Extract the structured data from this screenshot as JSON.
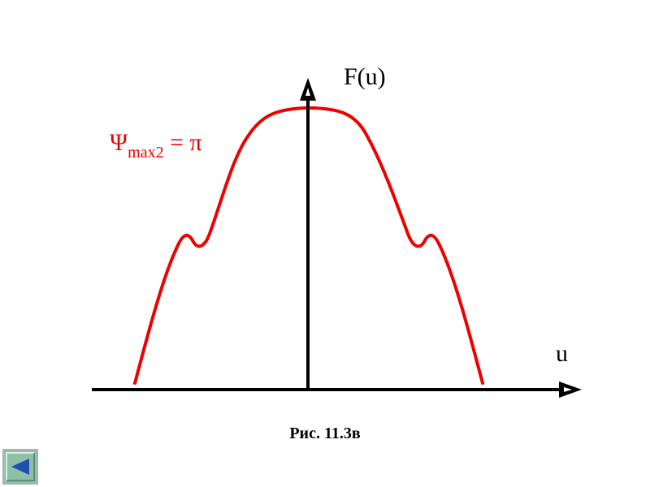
{
  "diagram": {
    "y_axis_label": "F(u)",
    "x_axis_label": "u",
    "parameter": {
      "symbol": "Ψ",
      "subscript": "max2",
      "rest": " = π"
    },
    "caption": "Рис. 11.3в",
    "curve_color": "#ee0000",
    "axis_color": "#000000"
  },
  "nav": {
    "back_icon": "triangle-left-icon"
  }
}
